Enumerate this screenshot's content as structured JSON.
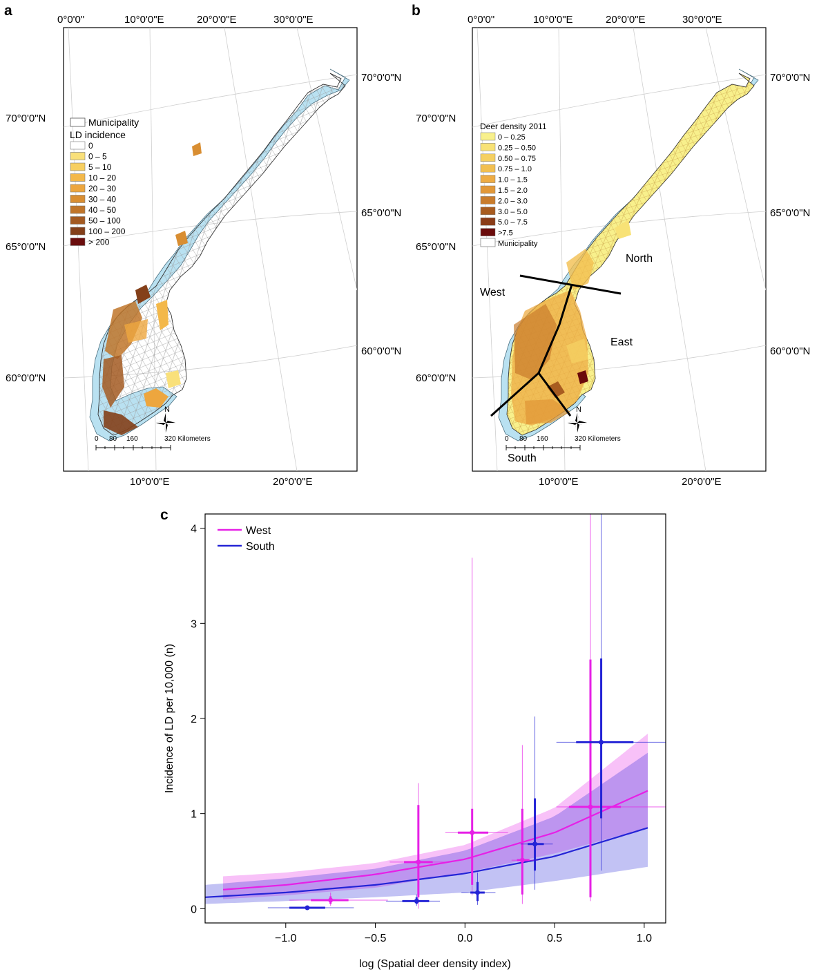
{
  "panels": {
    "a": {
      "letter": "a",
      "top_lon_labels": [
        "0°0'0\"",
        "10°0'0\"E",
        "20°0'0\"E",
        "30°0'0\"E"
      ],
      "bottom_lon_labels": [
        "10°0'0\"E",
        "20°0'0\"E"
      ],
      "left_lat_labels": [
        "70°0'0\"N",
        "65°0'0\"N",
        "60°0'0\"N"
      ],
      "right_lat_labels": [
        "70°0'0\"N",
        "65°0'0\"N",
        "60°0'0\"N"
      ],
      "legend": {
        "municipality": "Municipality",
        "title": "LD incidence",
        "items": [
          {
            "label": "0",
            "color": "#ffffff"
          },
          {
            "label": "0 – 5",
            "color": "#f9e07a"
          },
          {
            "label": "5 – 10",
            "color": "#f7cf60"
          },
          {
            "label": "10 – 20",
            "color": "#f3b84a"
          },
          {
            "label": "20 – 30",
            "color": "#eda63e"
          },
          {
            "label": "30 – 40",
            "color": "#d98e32"
          },
          {
            "label": "40 – 50",
            "color": "#c0752a"
          },
          {
            "label": "50 – 100",
            "color": "#a35a22"
          },
          {
            "label": "100 – 200",
            "color": "#84401a"
          },
          {
            "label": "> 200",
            "color": "#6a0d0d"
          }
        ]
      },
      "north": "N",
      "scale": {
        "ticks": [
          "0",
          "80",
          "160",
          "320 Kilometers"
        ]
      }
    },
    "b": {
      "letter": "b",
      "top_lon_labels": [
        "0°0'0\"",
        "10°0'0\"E",
        "20°0'0\"E",
        "30°0'0\"E"
      ],
      "bottom_lon_labels": [
        "10°0'0\"E",
        "20°0'0\"E"
      ],
      "left_lat_labels": [
        "70°0'0\"N",
        "65°0'0\"N",
        "60°0'0\"N"
      ],
      "right_lat_labels": [
        "70°0'0\"N",
        "65°0'0\"N",
        "60°0'0\"N"
      ],
      "legend": {
        "title": "Deer density 2011",
        "items": [
          {
            "label": "0 – 0.25",
            "color": "#f8f08c"
          },
          {
            "label": "0.25 – 0.50",
            "color": "#f8e276"
          },
          {
            "label": "0.50 – 0.75",
            "color": "#f5d062"
          },
          {
            "label": "0.75 – 1.0",
            "color": "#f2bf50"
          },
          {
            "label": "1.0 – 1.5",
            "color": "#eeac44"
          },
          {
            "label": "1.5 – 2.0",
            "color": "#e29838"
          },
          {
            "label": "2.0 – 3.0",
            "color": "#c97c2c"
          },
          {
            "label": "3.0 – 5.0",
            "color": "#a85c20"
          },
          {
            "label": "5.0 – 7.5",
            "color": "#8a3c18"
          },
          {
            "label": ">7.5",
            "color": "#6a0a0a"
          }
        ],
        "municipality": "Municipality"
      },
      "regions": {
        "north": "North",
        "west": "West",
        "east": "East",
        "south": "South"
      },
      "north": "N",
      "scale": {
        "ticks": [
          "0",
          "80",
          "160",
          "320 Kilometers"
        ]
      }
    },
    "c": {
      "letter": "c"
    }
  },
  "colors": {
    "sea": "#b9e1f1",
    "land_grey": "#ffffff",
    "outline": "#555555",
    "west": "#e620e6",
    "south": "#2424d6"
  },
  "chart_data": {
    "type": "line",
    "xlabel": "log (Spatial deer density index)",
    "ylabel": "Incidence of LD per 10,000 (n)",
    "xlim": [
      -1.45,
      1.12
    ],
    "ylim": [
      -0.15,
      4.15
    ],
    "x_ticks": [
      "−1.0",
      "−0.5",
      "0.0",
      "0.5",
      "1.0"
    ],
    "x_tick_values": [
      -1.0,
      -0.5,
      0.0,
      0.5,
      1.0
    ],
    "y_ticks": [
      "0",
      "1",
      "2",
      "3",
      "4"
    ],
    "y_tick_values": [
      0,
      1,
      2,
      3,
      4
    ],
    "legend_position": "top-left",
    "series": [
      {
        "name": "West",
        "color": "#e620e6",
        "curve": {
          "x": [
            -1.35,
            -1.0,
            -0.5,
            0.0,
            0.5,
            1.02
          ],
          "y": [
            0.2,
            0.25,
            0.36,
            0.52,
            0.8,
            1.24
          ]
        },
        "band_upper": [
          0.34,
          0.38,
          0.48,
          0.67,
          1.06,
          1.84
        ],
        "band_lower": [
          0.1,
          0.14,
          0.22,
          0.38,
          0.58,
          0.85
        ],
        "points": [
          {
            "x": -0.75,
            "y": 0.09,
            "xlo": -0.98,
            "xhi": -0.43,
            "xlo2": -0.86,
            "xhi2": -0.65,
            "ylo": 0.03,
            "yhi": 0.17,
            "ylo2": 0.05,
            "yhi2": 0.13
          },
          {
            "x": -0.26,
            "y": 0.49,
            "xlo": -0.42,
            "xhi": -0.1,
            "xlo2": -0.34,
            "xhi2": -0.18,
            "ylo": 0.0,
            "yhi": 1.32,
            "ylo2": 0.12,
            "yhi2": 1.09
          },
          {
            "x": 0.04,
            "y": 0.8,
            "xlo": -0.11,
            "xhi": 0.24,
            "xlo2": -0.04,
            "xhi2": 0.13,
            "ylo": 0.14,
            "yhi": 3.69,
            "ylo2": 0.25,
            "yhi2": 1.05
          },
          {
            "x": 0.32,
            "y": 0.51,
            "xlo": 0.26,
            "xhi": 0.4,
            "xlo2": 0.29,
            "xhi2": 0.36,
            "ylo": 0.05,
            "yhi": 1.72,
            "ylo2": 0.15,
            "yhi2": 1.05
          },
          {
            "x": 0.7,
            "y": 1.07,
            "xlo": 0.51,
            "xhi": 1.14,
            "xlo2": 0.58,
            "xhi2": 0.87,
            "ylo": 0.08,
            "yhi": 4.15,
            "ylo2": 0.12,
            "yhi2": 2.62
          }
        ]
      },
      {
        "name": "South",
        "color": "#2424d6",
        "curve": {
          "x": [
            -1.45,
            -1.0,
            -0.5,
            0.0,
            0.5,
            1.02
          ],
          "y": [
            0.12,
            0.17,
            0.25,
            0.37,
            0.55,
            0.85
          ]
        },
        "band_upper": [
          0.25,
          0.32,
          0.42,
          0.61,
          0.97,
          1.64
        ],
        "band_lower": [
          0.05,
          0.08,
          0.12,
          0.17,
          0.29,
          0.44
        ],
        "points": [
          {
            "x": -0.88,
            "y": 0.01,
            "xlo": -1.1,
            "xhi": -0.62,
            "xlo2": -0.98,
            "xhi2": -0.78,
            "ylo": 0.0,
            "yhi": 0.03,
            "ylo2": 0.0,
            "yhi2": 0.02
          },
          {
            "x": -0.27,
            "y": 0.08,
            "xlo": -0.44,
            "xhi": -0.14,
            "xlo2": -0.35,
            "xhi2": -0.2,
            "ylo": 0.03,
            "yhi": 0.15,
            "ylo2": 0.05,
            "yhi2": 0.12
          },
          {
            "x": 0.07,
            "y": 0.17,
            "xlo": -0.02,
            "xhi": 0.17,
            "xlo2": 0.03,
            "xhi2": 0.11,
            "ylo": 0.04,
            "yhi": 0.38,
            "ylo2": 0.08,
            "yhi2": 0.28
          },
          {
            "x": 0.39,
            "y": 0.68,
            "xlo": 0.31,
            "xhi": 0.49,
            "xlo2": 0.35,
            "xhi2": 0.44,
            "ylo": 0.2,
            "yhi": 2.02,
            "ylo2": 0.4,
            "yhi2": 1.16
          },
          {
            "x": 0.76,
            "y": 1.75,
            "xlo": 0.51,
            "xhi": 1.14,
            "xlo2": 0.62,
            "xhi2": 0.94,
            "ylo": 0.4,
            "yhi": 4.15,
            "ylo2": 0.95,
            "yhi2": 2.63
          }
        ]
      }
    ]
  }
}
